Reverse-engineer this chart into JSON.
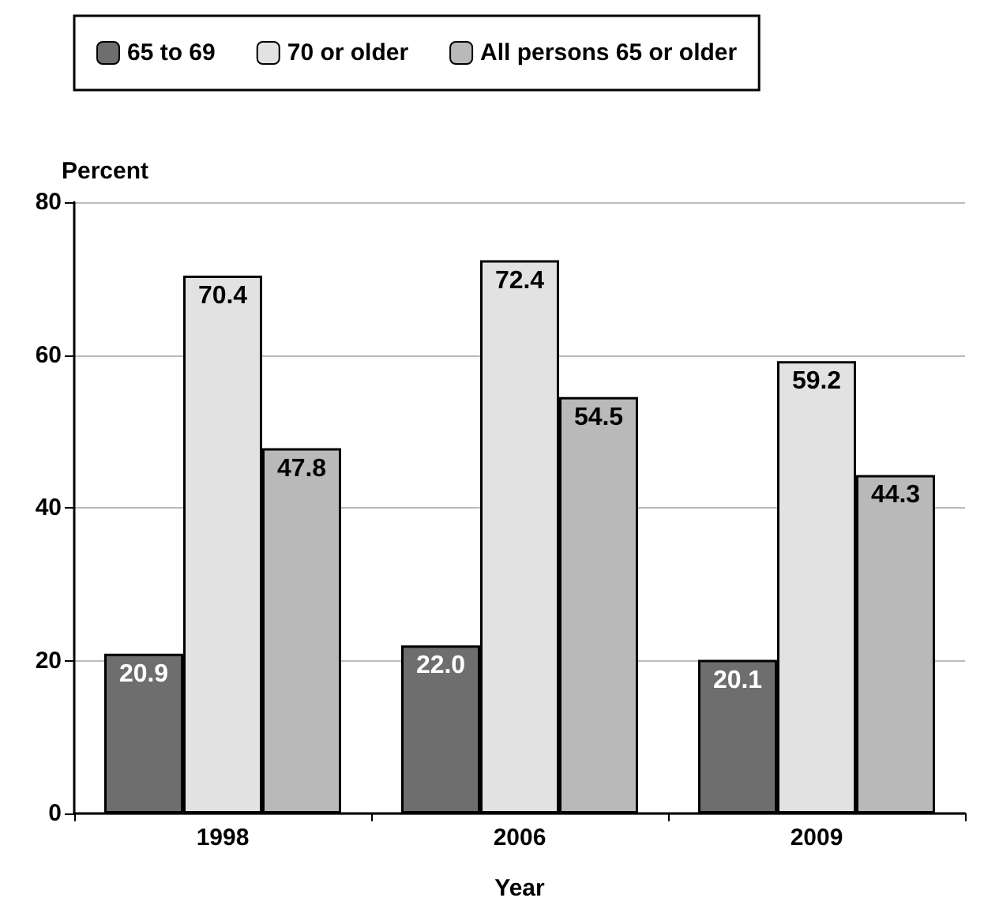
{
  "chart_data": {
    "type": "bar",
    "xlabel": "Year",
    "ylabel": "Percent",
    "categories": [
      "1998",
      "2006",
      "2009"
    ],
    "series": [
      {
        "name": "65 to 69",
        "color": "#6e6e6e",
        "values": [
          20.9,
          22.0,
          20.1
        ],
        "value_labels": [
          "20.9",
          "22.0",
          "20.1"
        ]
      },
      {
        "name": "70 or older",
        "color": "#e2e2e2",
        "values": [
          70.4,
          72.4,
          59.2
        ],
        "value_labels": [
          "70.4",
          "72.4",
          "59.2"
        ]
      },
      {
        "name": "All persons 65 or older",
        "color": "#b9b9b9",
        "values": [
          47.8,
          54.5,
          44.3
        ],
        "value_labels": [
          "47.8",
          "54.5",
          "44.3"
        ]
      }
    ],
    "ylim": [
      0,
      80
    ],
    "yticks": [
      0,
      20,
      40,
      60,
      80
    ],
    "grid": "y",
    "legend": "top"
  }
}
